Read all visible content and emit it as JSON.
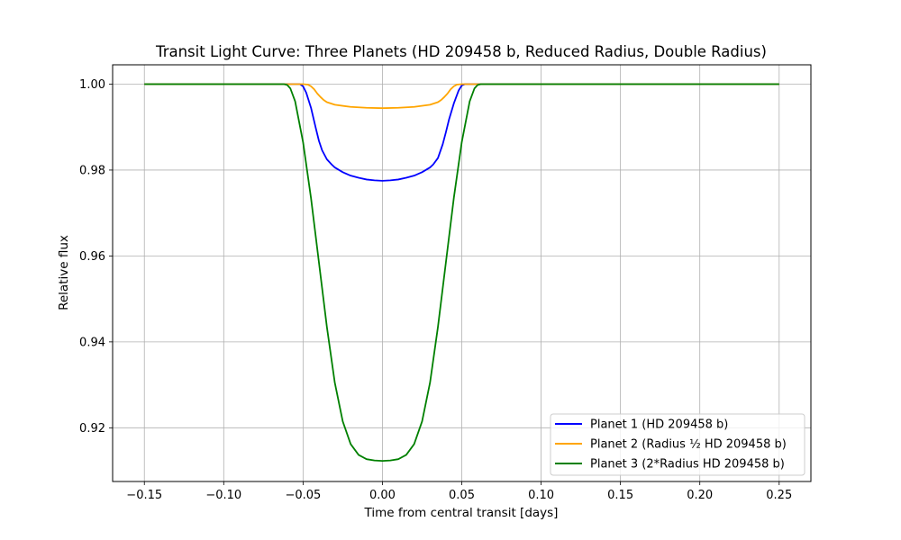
{
  "chart_data": {
    "type": "line",
    "title": "Transit Light Curve: Three Planets (HD 209458 b, Reduced Radius, Double Radius)",
    "xlabel": "Time from central transit [days]",
    "ylabel": "Relative flux",
    "xlim": [
      -0.17,
      0.27
    ],
    "ylim": [
      0.9075,
      1.0045
    ],
    "xticks": [
      -0.15,
      -0.1,
      -0.05,
      0.0,
      0.05,
      0.1,
      0.15,
      0.2,
      0.25
    ],
    "xtick_labels": [
      "−0.15",
      "−0.10",
      "−0.05",
      "0.00",
      "0.05",
      "0.10",
      "0.15",
      "0.20",
      "0.25"
    ],
    "yticks": [
      0.92,
      0.94,
      0.96,
      0.98,
      1.0
    ],
    "ytick_labels": [
      "0.92",
      "0.94",
      "0.96",
      "0.98",
      "1.00"
    ],
    "grid": true,
    "legend_position": "lower-right",
    "series": [
      {
        "name": "Planet 1 (HD 209458 b)",
        "color": "#0000ff",
        "x": [
          -0.15,
          -0.06,
          -0.052,
          -0.05,
          -0.048,
          -0.045,
          -0.042,
          -0.04,
          -0.038,
          -0.035,
          -0.032,
          -0.03,
          -0.025,
          -0.02,
          -0.015,
          -0.01,
          -0.005,
          0.0,
          0.005,
          0.01,
          0.015,
          0.02,
          0.025,
          0.03,
          0.032,
          0.035,
          0.038,
          0.04,
          0.042,
          0.045,
          0.048,
          0.05,
          0.052,
          0.06,
          0.25
        ],
        "y": [
          1.0,
          1.0,
          1.0,
          0.9995,
          0.998,
          0.9945,
          0.9898,
          0.9868,
          0.9846,
          0.9825,
          0.9813,
          0.9806,
          0.9795,
          0.9787,
          0.9782,
          0.9778,
          0.9776,
          0.9775,
          0.9776,
          0.9778,
          0.9782,
          0.9787,
          0.9795,
          0.9806,
          0.9813,
          0.9828,
          0.986,
          0.9888,
          0.9918,
          0.9955,
          0.9985,
          0.9997,
          1.0,
          1.0,
          1.0
        ]
      },
      {
        "name": "Planet 2 (Radius ½ HD 209458 b)",
        "color": "#ffa500",
        "x": [
          -0.15,
          -0.05,
          -0.047,
          -0.045,
          -0.043,
          -0.041,
          -0.039,
          -0.037,
          -0.035,
          -0.03,
          -0.02,
          -0.01,
          0.0,
          0.01,
          0.02,
          0.03,
          0.035,
          0.037,
          0.039,
          0.041,
          0.043,
          0.045,
          0.047,
          0.05,
          0.25
        ],
        "y": [
          1.0,
          1.0,
          0.9999,
          0.9995,
          0.9988,
          0.9978,
          0.997,
          0.9963,
          0.9958,
          0.9952,
          0.9947,
          0.9945,
          0.9944,
          0.9945,
          0.9947,
          0.9952,
          0.9958,
          0.9963,
          0.997,
          0.9978,
          0.9988,
          0.9995,
          0.9999,
          1.0,
          1.0
        ]
      },
      {
        "name": "Planet 3 (2*Radius HD 209458 b)",
        "color": "#008000",
        "x": [
          -0.15,
          -0.062,
          -0.06,
          -0.058,
          -0.055,
          -0.05,
          -0.045,
          -0.04,
          -0.035,
          -0.03,
          -0.025,
          -0.02,
          -0.015,
          -0.01,
          -0.005,
          0.0,
          0.005,
          0.01,
          0.015,
          0.02,
          0.025,
          0.03,
          0.035,
          0.04,
          0.045,
          0.05,
          0.055,
          0.058,
          0.06,
          0.062,
          0.25
        ],
        "y": [
          1.0,
          1.0,
          0.9998,
          0.999,
          0.996,
          0.9865,
          0.9735,
          0.9585,
          0.9435,
          0.9305,
          0.9215,
          0.9162,
          0.9137,
          0.9127,
          0.9124,
          0.9123,
          0.9124,
          0.9127,
          0.9137,
          0.9162,
          0.9215,
          0.9305,
          0.9435,
          0.9585,
          0.9735,
          0.9865,
          0.996,
          0.999,
          0.9998,
          1.0,
          1.0
        ]
      }
    ]
  }
}
